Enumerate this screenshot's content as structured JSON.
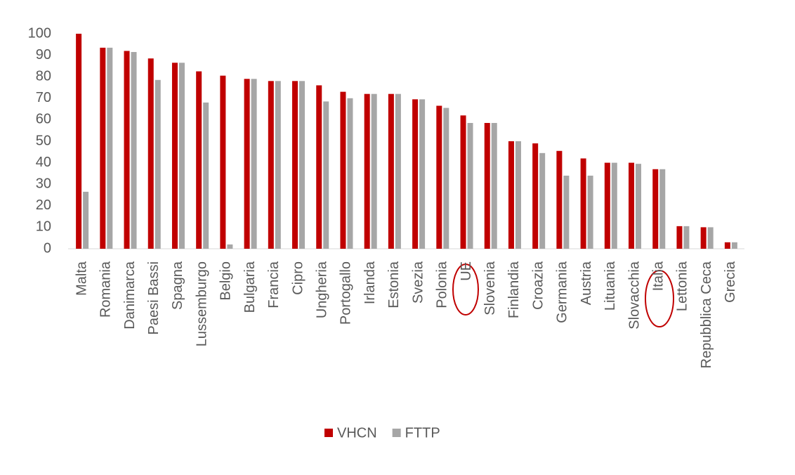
{
  "chart_data": {
    "type": "bar",
    "categories": [
      "Malta",
      "Romania",
      "Danimarca",
      "Paesi Bassi",
      "Spagna",
      "Lussemburgo",
      "Belgio",
      "Bulgaria",
      "Francia",
      "Cipro",
      "Ungheria",
      "Portogallo",
      "Irlanda",
      "Estonia",
      "Svezia",
      "Polonia",
      "UE",
      "Slovenia",
      "Finlandia",
      "Croazia",
      "Germania",
      "Austria",
      "Lituania",
      "Slovacchia",
      "Italia",
      "Lettonia",
      "Repubblica Ceca",
      "Grecia"
    ],
    "series": [
      {
        "name": "VHCN",
        "color": "#c00000",
        "values": [
          100,
          93.5,
          92,
          88.5,
          86.5,
          82.5,
          80.5,
          79,
          78,
          78,
          76,
          73,
          72,
          72,
          69.5,
          66.5,
          62,
          58.5,
          50,
          49,
          45.5,
          42,
          40,
          40,
          37,
          10.5,
          10,
          3
        ]
      },
      {
        "name": "FTTP",
        "color": "#a6a6a6",
        "values": [
          26.5,
          93.5,
          91.5,
          78.5,
          86.5,
          68,
          2,
          79,
          78,
          78,
          68.5,
          70,
          72,
          72,
          69.5,
          65.5,
          58.5,
          58.5,
          50,
          44.5,
          34,
          34,
          40,
          39.5,
          37,
          10.5,
          10,
          3
        ]
      }
    ],
    "ylim": [
      0,
      100
    ],
    "yticks": [
      0,
      10,
      20,
      30,
      40,
      50,
      60,
      70,
      80,
      90,
      100
    ],
    "grid": false
  }
}
